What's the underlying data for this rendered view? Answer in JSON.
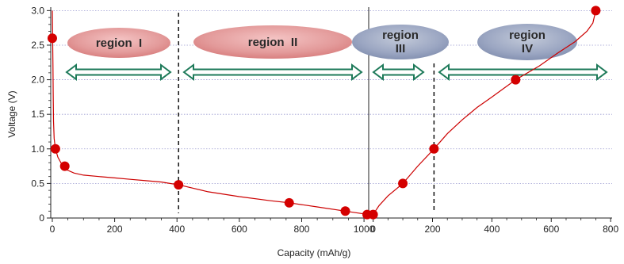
{
  "chart_data": {
    "type": "line",
    "ylabel": "Voltage (V)",
    "xlabel": "Capacity (mAh/g)",
    "ylim": [
      0,
      3.05
    ],
    "y_ticks": [
      "0",
      "0.5",
      "1.0",
      "1.5",
      "2.0",
      "2.5",
      "3.0"
    ],
    "y_tick_values": [
      0,
      0.5,
      1.0,
      1.5,
      2.0,
      2.5,
      3.0
    ],
    "grid": "horizontal dotted",
    "discharge": {
      "x_ticks": [
        "0",
        "200",
        "400",
        "600",
        "800",
        "1000"
      ],
      "x_tick_values": [
        0,
        200,
        400,
        600,
        800,
        1000
      ],
      "xlim": [
        -5,
        1015
      ],
      "curve": [
        [
          0,
          3.0
        ],
        [
          1,
          2.6
        ],
        [
          2,
          2.2
        ],
        [
          3,
          1.8
        ],
        [
          4,
          1.4
        ],
        [
          6,
          1.15
        ],
        [
          10,
          1.0
        ],
        [
          18,
          0.88
        ],
        [
          30,
          0.78
        ],
        [
          45,
          0.7
        ],
        [
          70,
          0.65
        ],
        [
          100,
          0.62
        ],
        [
          150,
          0.6
        ],
        [
          200,
          0.58
        ],
        [
          250,
          0.56
        ],
        [
          300,
          0.54
        ],
        [
          350,
          0.52
        ],
        [
          405,
          0.48
        ],
        [
          500,
          0.38
        ],
        [
          600,
          0.31
        ],
        [
          700,
          0.25
        ],
        [
          760,
          0.22
        ],
        [
          850,
          0.16
        ],
        [
          940,
          0.1
        ],
        [
          1000,
          0.06
        ],
        [
          1010,
          0.05
        ]
      ],
      "markers": [
        [
          0,
          2.6
        ],
        [
          10,
          1.0
        ],
        [
          40,
          0.75
        ],
        [
          405,
          0.48
        ],
        [
          760,
          0.22
        ],
        [
          940,
          0.1
        ],
        [
          1010,
          0.05
        ]
      ]
    },
    "charge": {
      "x_ticks": [
        "0",
        "200",
        "400",
        "600",
        "800"
      ],
      "x_tick_values": [
        0,
        200,
        400,
        600,
        800
      ],
      "xlim": [
        -15,
        805
      ],
      "curve": [
        [
          0,
          0.05
        ],
        [
          20,
          0.18
        ],
        [
          50,
          0.32
        ],
        [
          100,
          0.5
        ],
        [
          150,
          0.75
        ],
        [
          205,
          1.0
        ],
        [
          250,
          1.22
        ],
        [
          300,
          1.42
        ],
        [
          350,
          1.6
        ],
        [
          400,
          1.75
        ],
        [
          480,
          2.0
        ],
        [
          560,
          2.2
        ],
        [
          620,
          2.38
        ],
        [
          680,
          2.55
        ],
        [
          720,
          2.7
        ],
        [
          740,
          2.82
        ],
        [
          750,
          3.0
        ]
      ],
      "markers": [
        [
          0,
          0.05
        ],
        [
          100,
          0.5
        ],
        [
          205,
          1.0
        ],
        [
          480,
          2.0
        ],
        [
          750,
          3.0
        ]
      ]
    },
    "regions": [
      {
        "label": "region  I",
        "color": "#dc8a8a"
      },
      {
        "label": "region  II",
        "color": "#dc8a8a"
      },
      {
        "label": "region\nIII",
        "color": "#8e9ab8"
      },
      {
        "label": "region\nIV",
        "color": "#8e9ab8"
      }
    ],
    "line_color": "#cc0000",
    "marker_color": "#d40000",
    "arrow_color": "#1e7a5a"
  }
}
